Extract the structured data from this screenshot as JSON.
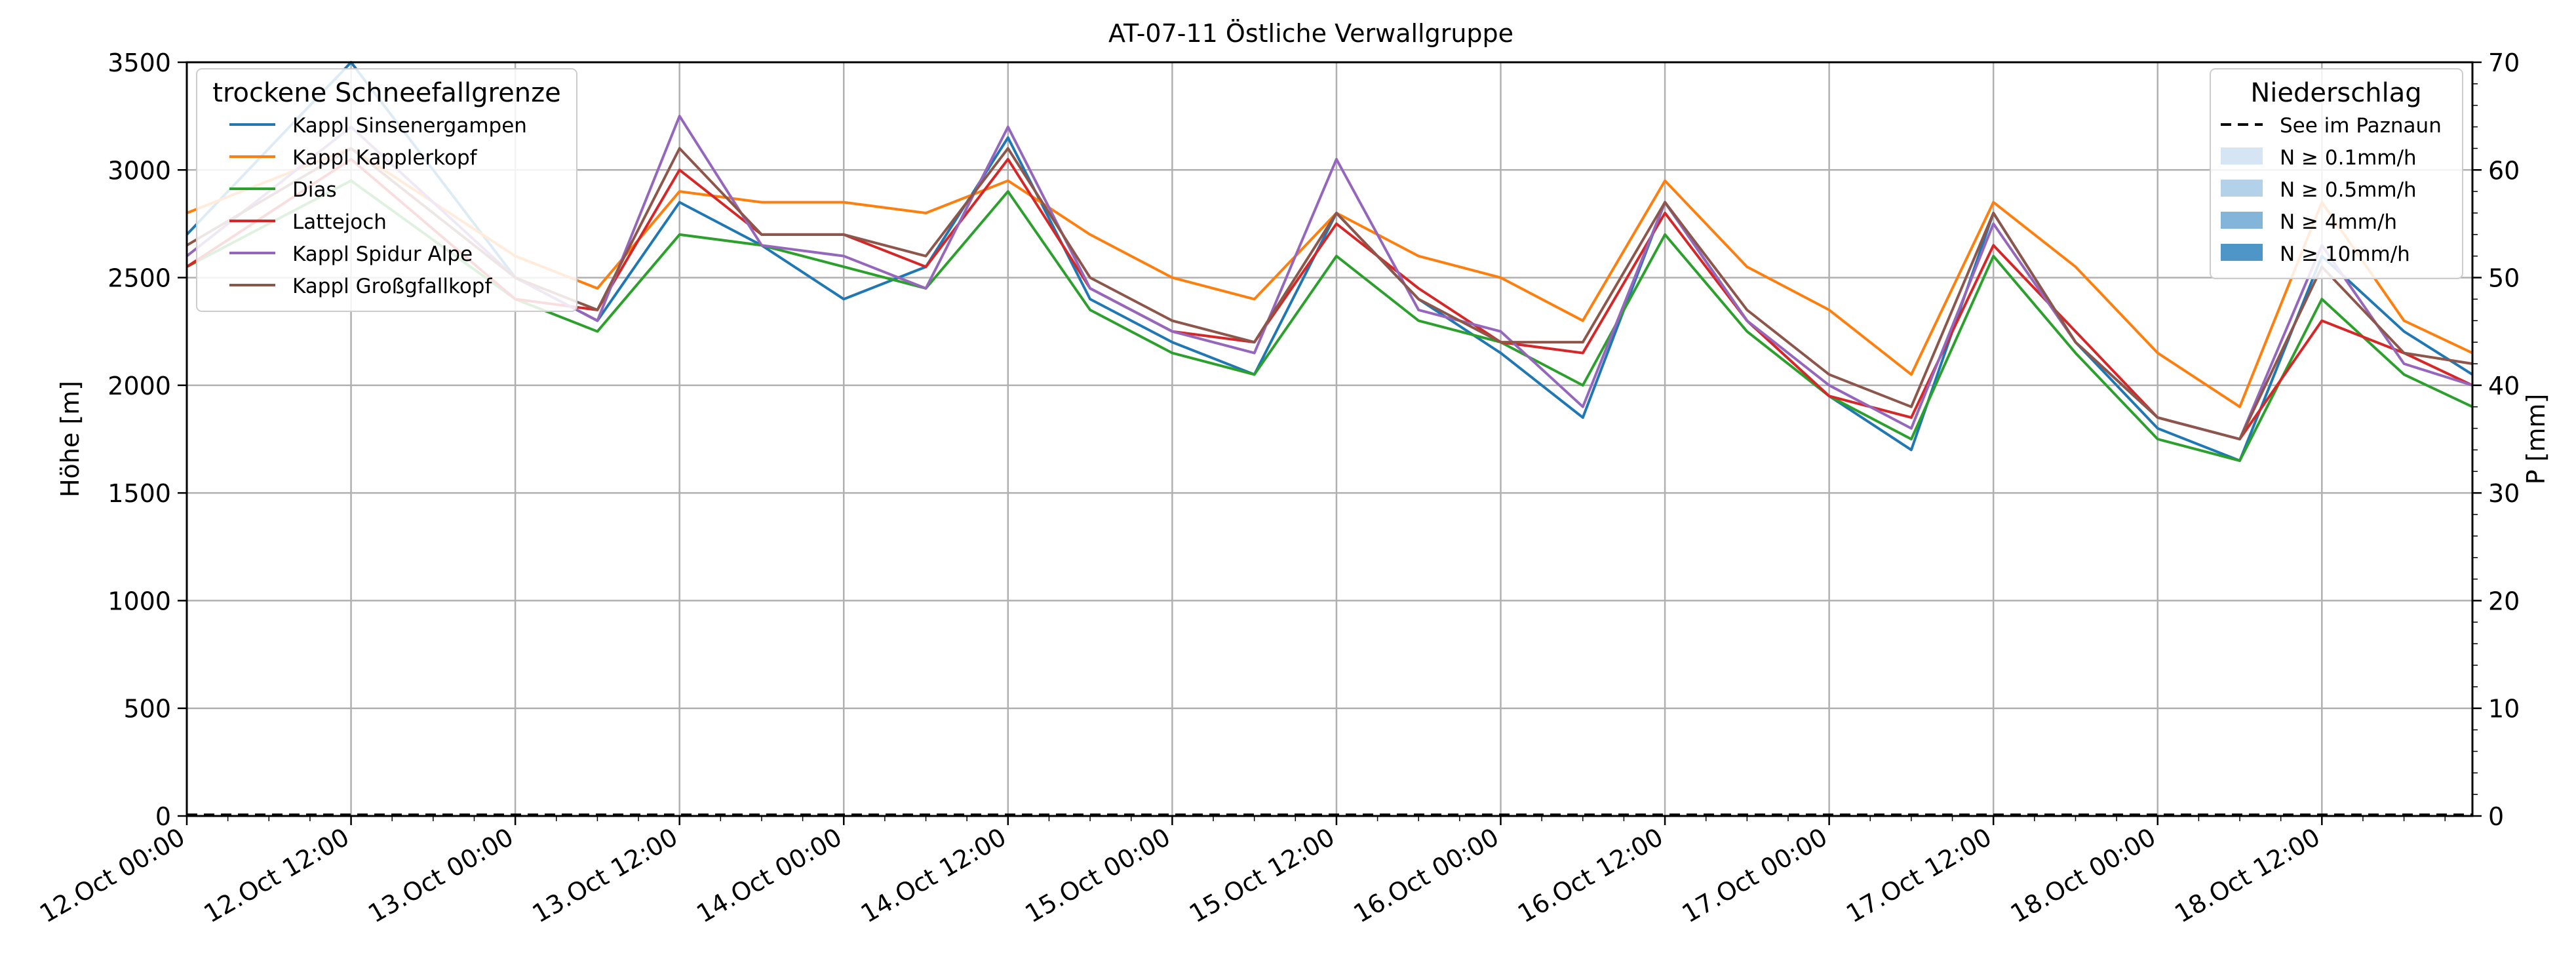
{
  "chart_data": {
    "type": "line",
    "title": "AT-07-11 Östliche Verwallgruppe",
    "ylabel": "Höhe [m]",
    "ylabel_right": "P [mm]",
    "xlim": [
      "2023-10-12 00:00",
      "2023-10-18 23:00"
    ],
    "ylim": [
      0,
      3500
    ],
    "ylim_right": [
      0,
      70
    ],
    "yticks": [
      0,
      500,
      1000,
      1500,
      2000,
      2500,
      3000,
      3500
    ],
    "yticks_right": [
      0,
      10,
      20,
      30,
      40,
      50,
      60,
      70
    ],
    "xtick_labels": [
      "12.Oct 00:00",
      "12.Oct 12:00",
      "13.Oct 00:00",
      "13.Oct 12:00",
      "14.Oct 00:00",
      "14.Oct 12:00",
      "15.Oct 00:00",
      "15.Oct 12:00",
      "16.Oct 00:00",
      "16.Oct 12:00",
      "17.Oct 00:00",
      "17.Oct 12:00",
      "18.Oct 00:00",
      "18.Oct 12:00"
    ],
    "grid": true,
    "legend_left": {
      "title": "trockene Schneefallgrenze",
      "placement": "top-left"
    },
    "legend_right": {
      "title": "Niederschlag",
      "placement": "top-right",
      "items": [
        {
          "label": "See im Paznaun",
          "type": "dashed",
          "color": "#000000"
        },
        {
          "label": "N ≥ 0.1mm/h",
          "type": "patch",
          "color": "#d5e5f3"
        },
        {
          "label": "N ≥ 0.5mm/h",
          "type": "patch",
          "color": "#b4d1ea"
        },
        {
          "label": "N ≥ 4mm/h",
          "type": "patch",
          "color": "#83b4d9"
        },
        {
          "label": "N ≥ 10mm/h",
          "type": "patch",
          "color": "#4f96c8"
        }
      ]
    },
    "precipitation": {
      "name": "See im Paznaun",
      "values_mm": [
        0,
        0,
        0,
        0,
        0,
        0,
        0
      ]
    },
    "series_x": [
      "2023-10-12 00:00",
      "2023-10-12 12:00",
      "2023-10-13 00:00",
      "2023-10-13 06:00",
      "2023-10-13 12:00",
      "2023-10-13 18:00",
      "2023-10-14 00:00",
      "2023-10-14 06:00",
      "2023-10-14 12:00",
      "2023-10-14 18:00",
      "2023-10-15 00:00",
      "2023-10-15 06:00",
      "2023-10-15 12:00",
      "2023-10-15 18:00",
      "2023-10-16 00:00",
      "2023-10-16 06:00",
      "2023-10-16 12:00",
      "2023-10-16 18:00",
      "2023-10-17 00:00",
      "2023-10-17 06:00",
      "2023-10-17 12:00",
      "2023-10-17 18:00",
      "2023-10-18 00:00",
      "2023-10-18 06:00",
      "2023-10-18 12:00",
      "2023-10-18 18:00",
      "2023-10-18 23:00"
    ],
    "series": [
      {
        "name": "Kappl Sinsenergampen",
        "color": "#1f77b4",
        "values": [
          2700,
          3500,
          2500,
          2300,
          2850,
          2650,
          2400,
          2550,
          3150,
          2400,
          2200,
          2050,
          2800,
          2400,
          2150,
          1850,
          2850,
          2300,
          1950,
          1700,
          2800,
          2200,
          1800,
          1650,
          2600,
          2250,
          2050
        ]
      },
      {
        "name": "Kappl Kapplerkopf",
        "color": "#ff7f0e",
        "values": [
          2800,
          3100,
          2600,
          2450,
          2900,
          2850,
          2850,
          2800,
          2950,
          2700,
          2500,
          2400,
          2800,
          2600,
          2500,
          2300,
          2950,
          2550,
          2350,
          2050,
          2850,
          2550,
          2150,
          1900,
          2850,
          2300,
          2150
        ]
      },
      {
        "name": "Dias",
        "color": "#2ca02c",
        "values": [
          2550,
          2950,
          2400,
          2250,
          2700,
          2650,
          2550,
          2450,
          2900,
          2350,
          2150,
          2050,
          2600,
          2300,
          2200,
          2000,
          2700,
          2250,
          1950,
          1750,
          2600,
          2150,
          1750,
          1650,
          2400,
          2050,
          1900
        ]
      },
      {
        "name": "Lattejoch",
        "color": "#d62728",
        "values": [
          2550,
          3050,
          2400,
          2350,
          3000,
          2700,
          2700,
          2550,
          3050,
          2450,
          2250,
          2200,
          2750,
          2450,
          2200,
          2150,
          2800,
          2300,
          1950,
          1850,
          2650,
          2250,
          1850,
          1750,
          2300,
          2150,
          2000
        ]
      },
      {
        "name": "Kappl Spidur Alpe",
        "color": "#9467bd",
        "values": [
          2600,
          3200,
          2500,
          2300,
          3250,
          2650,
          2600,
          2450,
          3200,
          2450,
          2250,
          2150,
          3050,
          2350,
          2250,
          1900,
          2850,
          2300,
          2000,
          1800,
          2750,
          2200,
          1850,
          1750,
          2650,
          2100,
          2000
        ]
      },
      {
        "name": "Kappl Großgfallkopf",
        "color": "#8c564b",
        "values": [
          2650,
          3100,
          2500,
          2350,
          3100,
          2700,
          2700,
          2600,
          3100,
          2500,
          2300,
          2200,
          2800,
          2400,
          2200,
          2200,
          2850,
          2350,
          2050,
          1900,
          2800,
          2200,
          1850,
          1750,
          2550,
          2150,
          2100
        ]
      }
    ]
  }
}
